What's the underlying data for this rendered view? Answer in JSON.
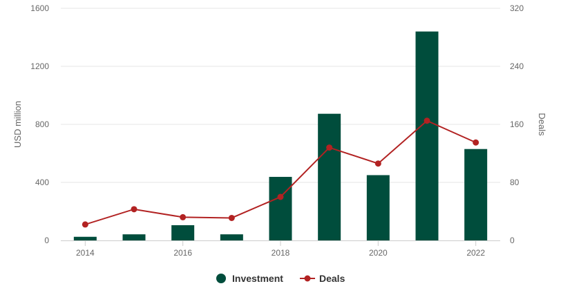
{
  "chart_data": {
    "type": "bar",
    "categories": [
      "2014",
      "2015",
      "2016",
      "2017",
      "2018",
      "2019",
      "2020",
      "2021",
      "2022"
    ],
    "x_tick_labels": [
      "2014",
      "2016",
      "2018",
      "2020",
      "2022"
    ],
    "series": [
      {
        "name": "Investment",
        "type": "bar",
        "axis": "left",
        "color": "#004d3c",
        "values": [
          25,
          42,
          105,
          42,
          438,
          873,
          450,
          1440,
          630
        ]
      },
      {
        "name": "Deals",
        "type": "line",
        "axis": "right",
        "color": "#b22222",
        "values": [
          22,
          43,
          32,
          31,
          60,
          128,
          106,
          165,
          135
        ]
      }
    ],
    "ylabel": "USD million",
    "y2label": "Deals",
    "ylim": [
      0,
      1600
    ],
    "y2lim": [
      0,
      320
    ],
    "yticks": [
      "0",
      "400",
      "800",
      "1200",
      "1600"
    ],
    "y2ticks": [
      "0",
      "80",
      "160",
      "240",
      "320"
    ],
    "grid": true,
    "legend_position": "bottom-center"
  }
}
